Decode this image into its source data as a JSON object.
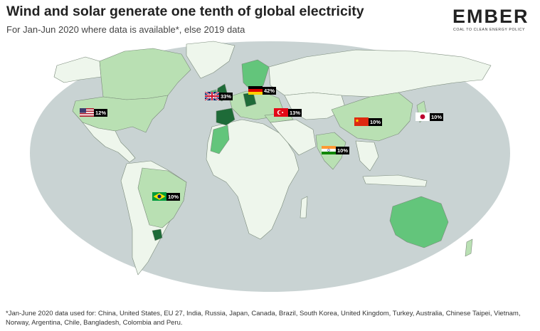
{
  "header": {
    "title": "Wind and solar generate one tenth of global electricity",
    "subtitle": "For Jan-Jun 2020 where data is available*, else 2019 data"
  },
  "logo": {
    "name": "EMBER",
    "tagline": "COAL TO CLEAN ENERGY POLICY"
  },
  "colors": {
    "ocean": "#c9d3d3",
    "land_low": "#eef6ec",
    "land_mid": "#b9e0b3",
    "land_high": "#63c57b",
    "land_top": "#1e6b38",
    "label_bg": "#000000"
  },
  "map": {
    "projection": "world (Robinson-style)",
    "labels": [
      {
        "country": "United States",
        "flag": "us-flag-icon",
        "value": "12%"
      },
      {
        "country": "United Kingdom",
        "flag": "uk-flag-icon",
        "value": "33%"
      },
      {
        "country": "Germany",
        "flag": "germany-flag-icon",
        "value": "42%"
      },
      {
        "country": "Turkey",
        "flag": "turkey-flag-icon",
        "value": "13%"
      },
      {
        "country": "China",
        "flag": "china-flag-icon",
        "value": "10%"
      },
      {
        "country": "Japan",
        "flag": "japan-flag-icon",
        "value": "10%"
      },
      {
        "country": "India",
        "flag": "india-flag-icon",
        "value": "10%"
      },
      {
        "country": "Brazil",
        "flag": "brazil-flag-icon",
        "value": "10%"
      }
    ]
  },
  "footnote": "*Jan-June 2020 data used for: China, United States, EU 27, India, Russia, Japan, Canada, Brazil, South Korea, United Kingdom, Turkey, Australia, Chinese Taipei, Vietnam, Norway, Argentina, Chile, Bangladesh, Colombia and Peru."
}
